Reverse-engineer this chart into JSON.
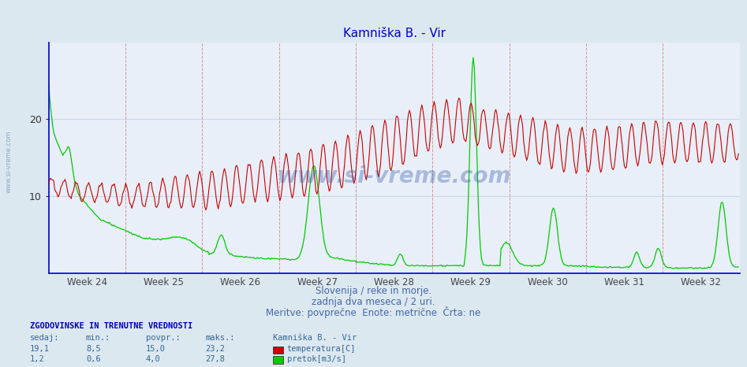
{
  "title": "Kamniška B. - Vir",
  "title_color": "#0000cc",
  "bg_color": "#dce8f0",
  "plot_bg_color": "#e8eff8",
  "grid_color": "#c8d8e8",
  "axis_color": "#0000cc",
  "xlabel_color": "#4466aa",
  "subtitle_lines": [
    "Slovenija / reke in morje.",
    "zadnja dva meseca / 2 uri.",
    "Meritve: povprečne  Enote: metrične  Črta: ne"
  ],
  "week_labels": [
    "Week 24",
    "Week 25",
    "Week 26",
    "Week 27",
    "Week 28",
    "Week 29",
    "Week 30",
    "Week 31",
    "Week 32"
  ],
  "xmin": 0,
  "xmax": 672,
  "ymin": 0,
  "ymax": 30,
  "yticks": [
    10,
    20
  ],
  "temp_color": "#cc0000",
  "flow_color": "#00cc00",
  "vline_color": "#dd8888",
  "watermark": "www.si-vreme.com",
  "watermark_color": "#3355aa",
  "watermark_alpha": 0.35,
  "legend_title": "Kamniška B. - Vir",
  "legend_items": [
    "temperatura[C]",
    "pretok[m3/s]"
  ],
  "legend_colors": [
    "#cc0000",
    "#00cc00"
  ],
  "stats_header": "ZGODOVINSKE IN TRENUTNE VREDNOSTI",
  "stats_cols": [
    "sedaj:",
    "min.:",
    "povpr.:",
    "maks.:"
  ],
  "stats_temp": [
    "19,1",
    "8,5",
    "15,0",
    "23,2"
  ],
  "stats_flow": [
    "1,2",
    "0,6",
    "4,0",
    "27,8"
  ],
  "n_points": 672
}
